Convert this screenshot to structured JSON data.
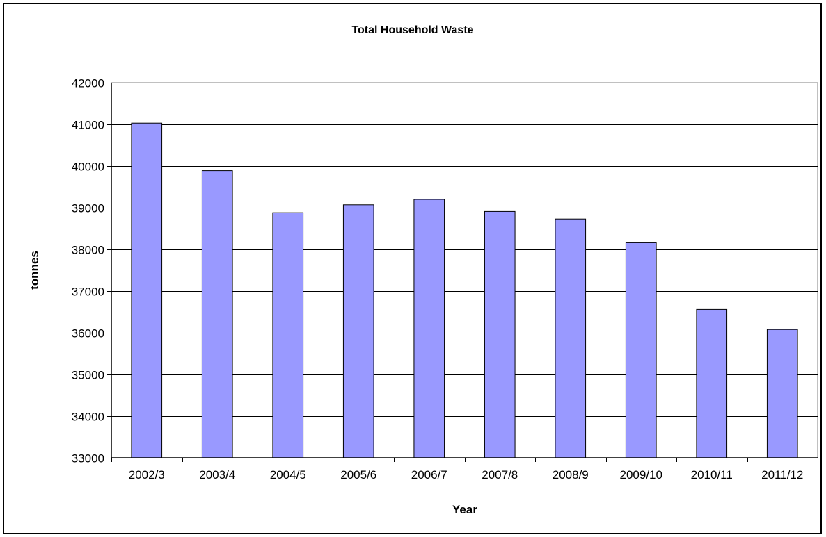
{
  "chart_data": {
    "type": "bar",
    "title": "Total Household Waste",
    "xlabel": "Year",
    "ylabel": "tonnes",
    "categories": [
      "2002/3",
      "2003/4",
      "2004/5",
      "2005/6",
      "2006/7",
      "2007/8",
      "2008/9",
      "2009/10",
      "2010/11",
      "2011/12"
    ],
    "values": [
      41030,
      39890,
      38880,
      39070,
      39200,
      38910,
      38730,
      38160,
      36560,
      36080
    ],
    "ylim": [
      33000,
      42000
    ],
    "yticks": [
      "33000",
      "34000",
      "35000",
      "36000",
      "37000",
      "38000",
      "39000",
      "40000",
      "41000",
      "42000"
    ],
    "grid": true,
    "legend": "none",
    "bar_color": "#9999FF",
    "bar_edge_color": "#000000"
  }
}
